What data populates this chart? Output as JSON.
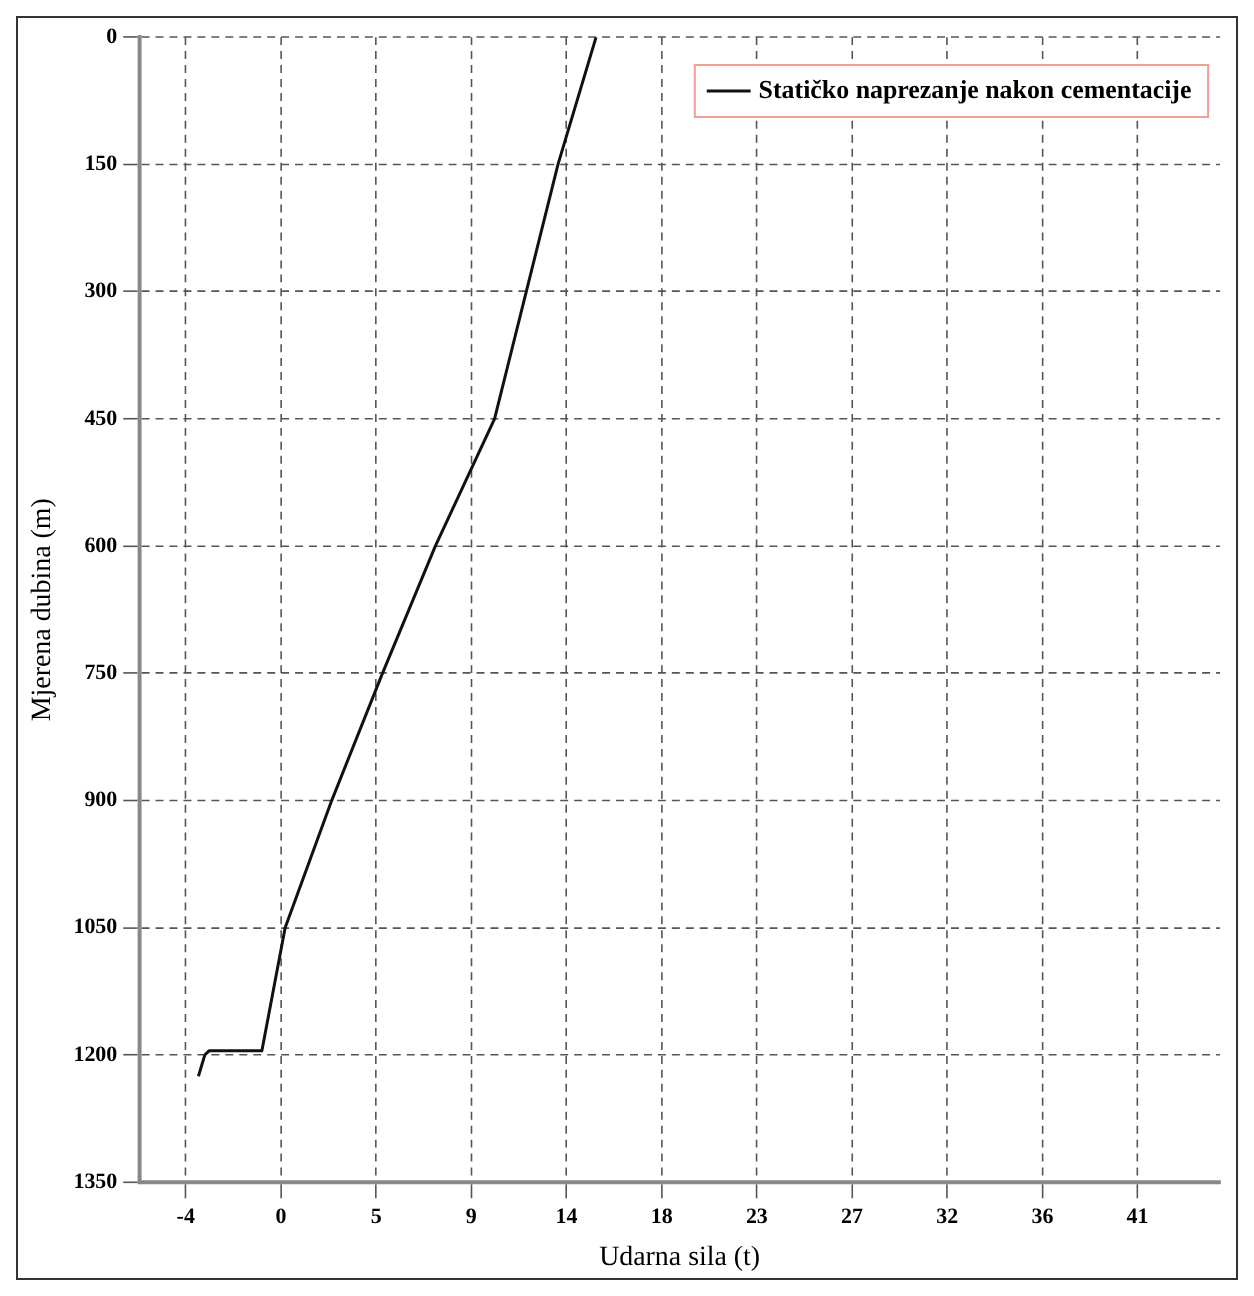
{
  "chart_data": {
    "type": "line",
    "xlabel": "Udarna sila (t)",
    "ylabel": "Mjerena dubina (m)",
    "x": [
      14.9,
      13.1,
      11.6,
      10.1,
      7.3,
      4.8,
      2.4,
      0.2,
      -0.9,
      -3.4,
      -3.6,
      -3.9
    ],
    "series": [
      {
        "name": "Statičko naprezanje nakon cementacije",
        "color": "#111111",
        "values": [
          0,
          150,
          300,
          450,
          600,
          750,
          900,
          1050,
          1195,
          1195,
          1200,
          1225
        ]
      }
    ],
    "xlim": [
      -6.7,
      44.4
    ],
    "xticks": [
      {
        "value": -4.5,
        "label": "-4"
      },
      0,
      {
        "value": 4.5,
        "label": "5"
      },
      9,
      {
        "value": 13.5,
        "label": "14"
      },
      18,
      {
        "value": 22.5,
        "label": "23"
      },
      27,
      {
        "value": 31.5,
        "label": "32"
      },
      36,
      {
        "value": 40.5,
        "label": "41"
      }
    ],
    "ylim": [
      1350,
      0
    ],
    "yticks": [
      0,
      150,
      300,
      450,
      600,
      750,
      900,
      1050,
      1200,
      1350
    ],
    "grid": true,
    "legend": "top right",
    "marker": "none",
    "line_style": "solid"
  }
}
